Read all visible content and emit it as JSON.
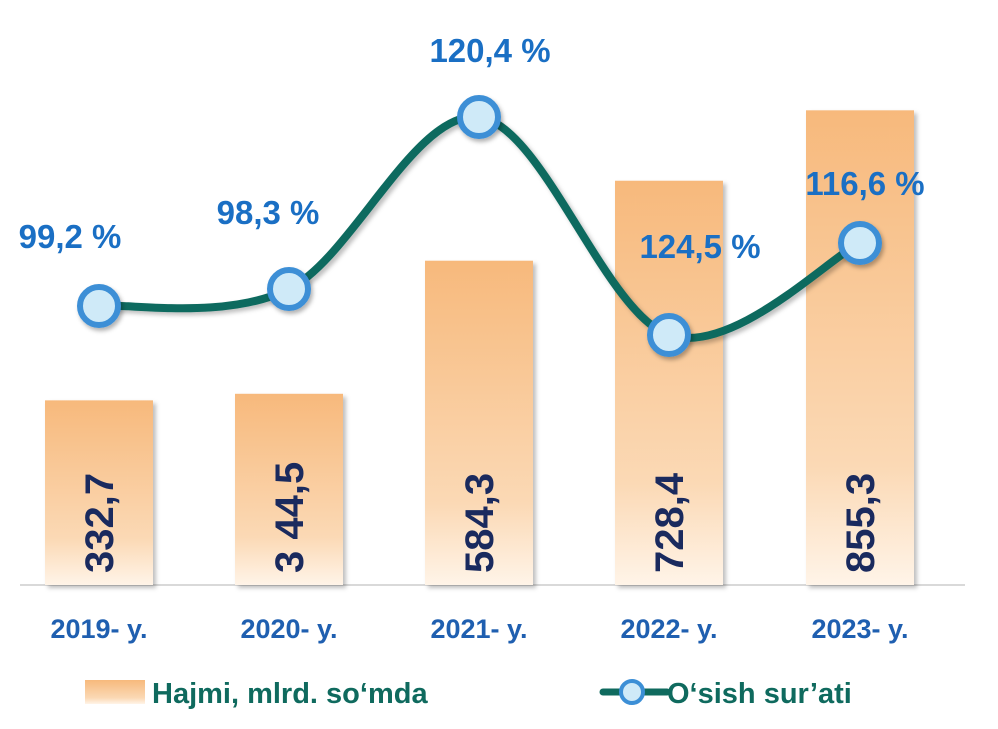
{
  "chart_data": {
    "type": "bar",
    "categories": [
      "2019- y.",
      "2020- y.",
      "2021- y.",
      "2022- y.",
      "2023- y."
    ],
    "series": [
      {
        "name": "Hajmi, mlrd. so‘mda",
        "type": "bar",
        "values": [
          332.7,
          344.5,
          584.3,
          728.4,
          855.3
        ],
        "labels": [
          "332,7",
          "3 44,5",
          "584,3",
          "728,4",
          "855,3"
        ],
        "color": "#f7c08a"
      },
      {
        "name": "O‘sish sur’ati",
        "type": "line",
        "values": [
          99.2,
          98.3,
          120.4,
          124.5,
          116.6
        ],
        "labels": [
          "99,2 %",
          "98,3 %",
          "120,4 %",
          "124,5 %",
          "116,6 %"
        ],
        "color": "#0f6a5e"
      }
    ],
    "bar_ylim": [
      0,
      1000
    ],
    "grid": false,
    "legend_position": "bottom",
    "marker_fill": "#cfeaf8",
    "marker_stroke": "#3c8fd6"
  }
}
